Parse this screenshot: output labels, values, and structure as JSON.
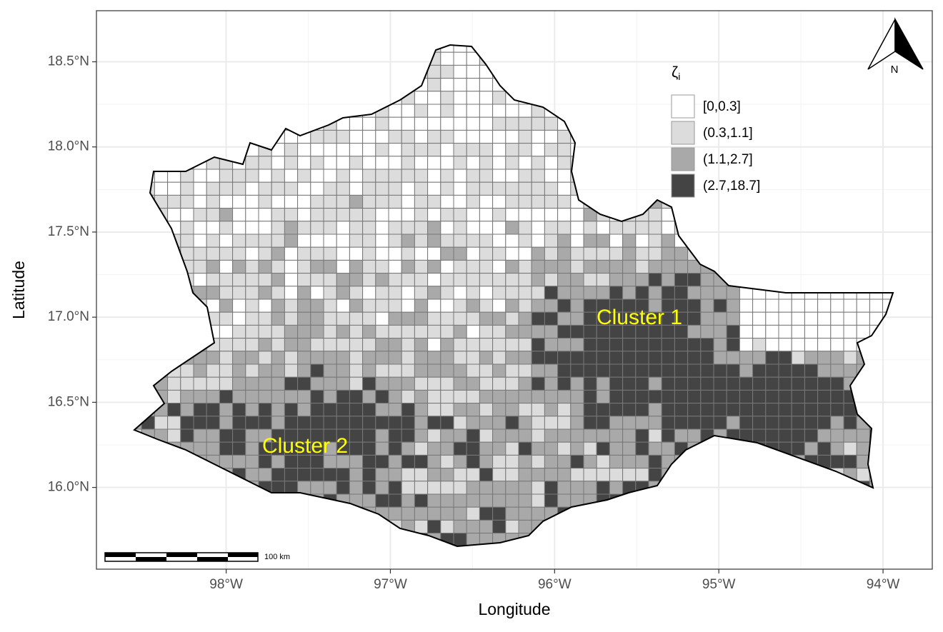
{
  "chart_data": {
    "type": "map",
    "xlabel": "Longitude",
    "ylabel": "Latitude",
    "xlim": [
      -98.79,
      -93.7
    ],
    "ylim": [
      15.52,
      18.8
    ],
    "xticks": [
      {
        "value": -98,
        "label": "98°W"
      },
      {
        "value": -97,
        "label": "97°W"
      },
      {
        "value": -96,
        "label": "96°W"
      },
      {
        "value": -95,
        "label": "95°W"
      },
      {
        "value": -94,
        "label": "94°W"
      }
    ],
    "yticks": [
      {
        "value": 16.0,
        "label": "16.0°N"
      },
      {
        "value": 16.5,
        "label": "16.5°N"
      },
      {
        "value": 17.0,
        "label": "17.0°N"
      },
      {
        "value": 17.5,
        "label": "17.5°N"
      },
      {
        "value": 18.0,
        "label": "18.0°N"
      },
      {
        "value": 18.5,
        "label": "18.5°N"
      }
    ],
    "grid": true,
    "legend": {
      "title": {
        "symbol": "ζ",
        "subscript": "i"
      },
      "entries": [
        {
          "name": "[0,0.3]",
          "color": "#ffffff"
        },
        {
          "name": "(0.3,1.1]",
          "color": "#dcdcdc"
        },
        {
          "name": "(1.1,2.7]",
          "color": "#a9a9a9"
        },
        {
          "name": "(2.7,18.7]",
          "color": "#444444"
        }
      ]
    },
    "annotations": [
      "Cluster 1",
      "Cluster 2"
    ],
    "scale_bar": "100 km",
    "north_arrow": "N"
  }
}
